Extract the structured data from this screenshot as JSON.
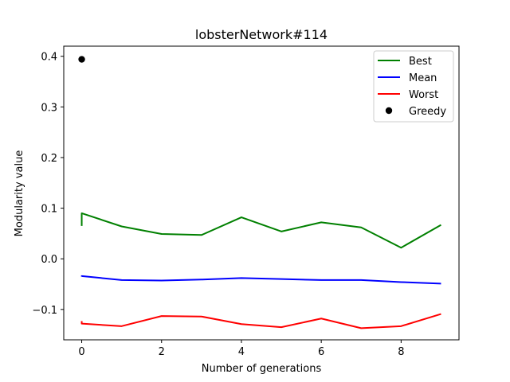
{
  "chart_data": {
    "type": "line",
    "title": "lobsterNetwork#114",
    "xlabel": "Number of generations",
    "ylabel": "Modularity value",
    "xlim": [
      -0.45,
      9.45
    ],
    "ylim": [
      -0.16,
      0.42
    ],
    "xticks": [
      0,
      2,
      4,
      6,
      8
    ],
    "yticks": [
      -0.1,
      0.0,
      0.1,
      0.2,
      0.3,
      0.4
    ],
    "grid": false,
    "legend_position": "top-right",
    "series": [
      {
        "name": "Best",
        "color": "#008000",
        "kind": "line",
        "x": [
          0,
          0,
          1,
          2,
          3,
          4,
          5,
          6,
          7,
          8,
          9
        ],
        "y": [
          0.065,
          0.09,
          0.064,
          0.049,
          0.047,
          0.082,
          0.054,
          0.072,
          0.062,
          0.022,
          0.067
        ]
      },
      {
        "name": "Mean",
        "color": "#0000ff",
        "kind": "line",
        "x": [
          0,
          0,
          1,
          2,
          3,
          4,
          5,
          6,
          7,
          8,
          9
        ],
        "y": [
          -0.035,
          -0.034,
          -0.042,
          -0.043,
          -0.041,
          -0.038,
          -0.04,
          -0.042,
          -0.042,
          -0.046,
          -0.049
        ]
      },
      {
        "name": "Worst",
        "color": "#ff0000",
        "kind": "line",
        "x": [
          0,
          0,
          1,
          2,
          3,
          4,
          5,
          6,
          7,
          8,
          9
        ],
        "y": [
          -0.123,
          -0.128,
          -0.133,
          -0.113,
          -0.114,
          -0.129,
          -0.135,
          -0.118,
          -0.137,
          -0.133,
          -0.109
        ]
      },
      {
        "name": "Greedy",
        "color": "#000000",
        "kind": "scatter",
        "x": [
          0
        ],
        "y": [
          0.394
        ]
      }
    ]
  }
}
